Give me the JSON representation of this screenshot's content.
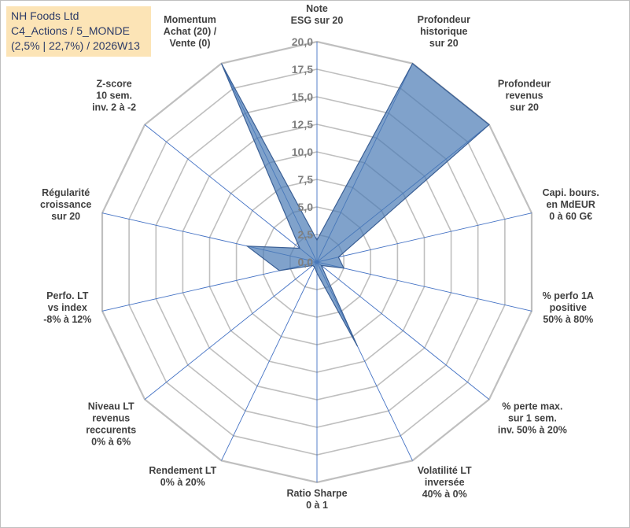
{
  "title_box": {
    "line1": "NH Foods Ltd",
    "line2": "C4_Actions / 5_MONDE",
    "line3": "(2,5% | 22,7%) / 2026W13"
  },
  "chart_data": {
    "type": "radar",
    "r_min": 0,
    "r_max": 20,
    "tick_step": 2.5,
    "tick_labels": [
      "0,0",
      "2,5",
      "5,0",
      "7,5",
      "10,0",
      "12,5",
      "15,0",
      "17,5",
      "20,0"
    ],
    "grid": true,
    "axes": [
      {
        "label": [
          "Note",
          "ESG sur 20"
        ],
        "value": 2.0
      },
      {
        "label": [
          "Profondeur",
          "historique",
          "sur 20"
        ],
        "value": 20.0
      },
      {
        "label": [
          "Profondeur",
          "revenus",
          "sur 20"
        ],
        "value": 20.0
      },
      {
        "label": [
          "Capi. bours.",
          "en MdEUR",
          "0 à 60 G€"
        ],
        "value": 2.0
      },
      {
        "label": [
          "% perfo 1A",
          "positive",
          "50% à 80%"
        ],
        "value": 2.5
      },
      {
        "label": [
          "% perte max.",
          "sur 1 sem.",
          "inv. 50% à 20%"
        ],
        "value": 0.5
      },
      {
        "label": [
          "Volatilité LT",
          "inversée",
          "40% à 0%"
        ],
        "value": 8.5
      },
      {
        "label": [
          "Ratio Sharpe",
          "0 à 1"
        ],
        "value": 1.0
      },
      {
        "label": [
          "Rendement LT",
          "0% à 20%"
        ],
        "value": 0.5
      },
      {
        "label": [
          "Niveau LT",
          "revenus",
          "reccurents",
          "0% à 6%"
        ],
        "value": 0.5
      },
      {
        "label": [
          "Perfo. LT",
          "vs index",
          "-8% à 12%"
        ],
        "value": 3.5
      },
      {
        "label": [
          "Régularité",
          "croissance",
          "sur 20"
        ],
        "value": 6.5
      },
      {
        "label": [
          "Z-score",
          "10 sem.",
          "inv. 2 à -2"
        ],
        "value": 2.0
      },
      {
        "label": [
          "Momentum",
          "Achat (20) /",
          "Vente (0)"
        ],
        "value": 20.0
      }
    ],
    "series": [
      {
        "fill": "#4a7ab5",
        "stroke": "#3a5f95",
        "opacity": 0.7
      }
    ],
    "colors": {
      "grid": "#bfbfbf",
      "spokes": "#4472c4",
      "tick_text": "#7f7f7f",
      "label_text": "#404040"
    }
  }
}
